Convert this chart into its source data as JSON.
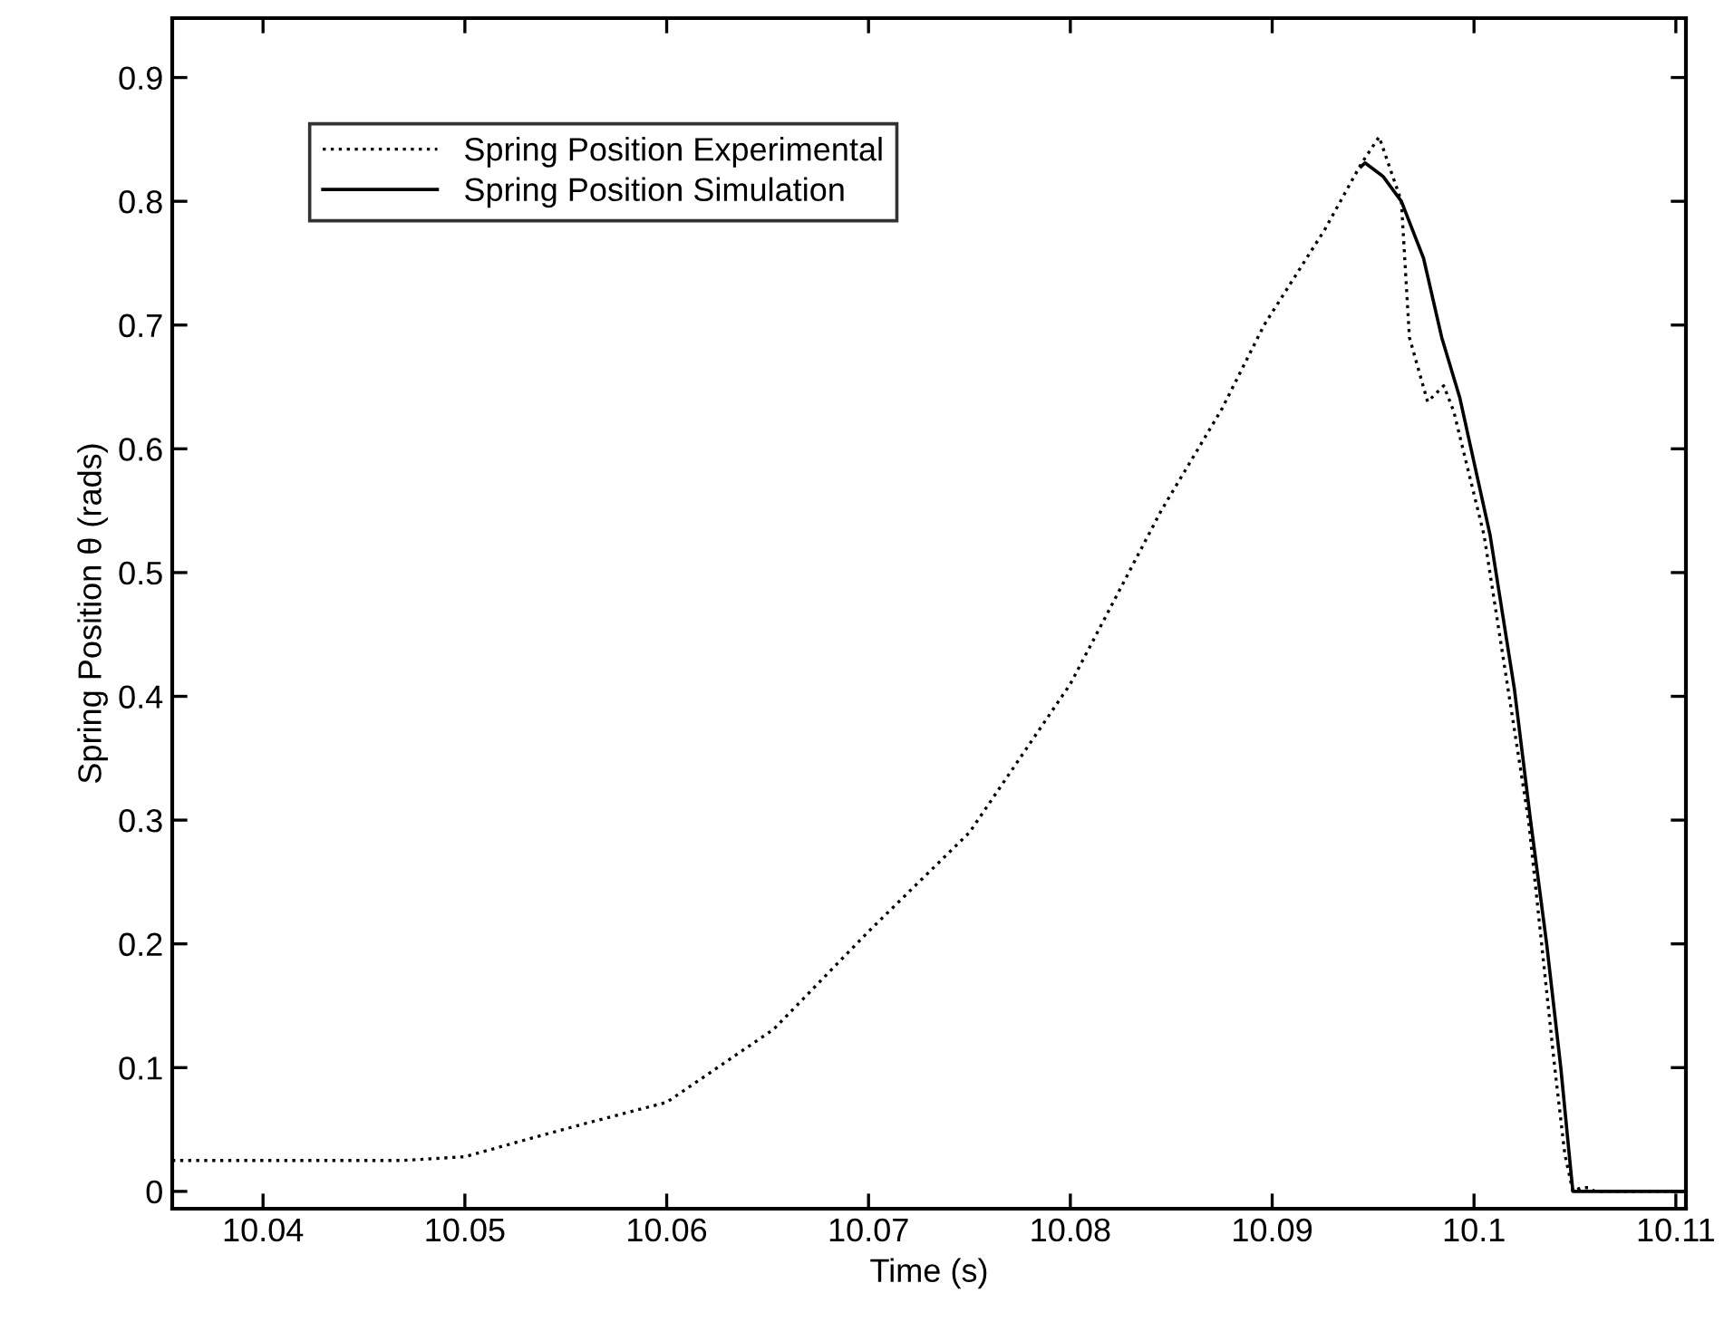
{
  "chart_data": {
    "type": "line",
    "xlabel": "Time (s)",
    "ylabel": "Spring Position θ (rads)",
    "xlim": [
      10.0355,
      10.1105
    ],
    "ylim": [
      -0.014,
      0.948
    ],
    "xticks": [
      10.04,
      10.05,
      10.06,
      10.07,
      10.08,
      10.09,
      10.1,
      10.11
    ],
    "yticks": [
      0,
      0.1,
      0.2,
      0.3,
      0.4,
      0.5,
      0.6,
      0.7,
      0.8,
      0.9
    ],
    "grid": false,
    "legend": "top left",
    "marker": "none",
    "series": [
      {
        "name": "Spring Position Experimental",
        "color": "#000000",
        "line_style": "dotted",
        "x": [
          10.0355,
          10.0469,
          10.05,
          10.0533,
          10.056,
          10.06,
          10.0653,
          10.07,
          10.075,
          10.08,
          10.0845,
          10.0875,
          10.0896,
          10.0926,
          10.0944,
          10.0953,
          10.0964,
          10.0968,
          10.0977,
          10.0985,
          10.099,
          10.1005,
          10.1027,
          10.104,
          10.1045,
          10.1049,
          10.1053,
          10.1057,
          10.106,
          10.1105
        ],
        "values": [
          0.025,
          0.025,
          0.028,
          0.043,
          0.055,
          0.072,
          0.131,
          0.21,
          0.29,
          0.41,
          0.55,
          0.632,
          0.7,
          0.777,
          0.83,
          0.852,
          0.8,
          0.69,
          0.638,
          0.651,
          0.63,
          0.53,
          0.3,
          0.1,
          0.03,
          0,
          0.003,
          0.003,
          0,
          0
        ]
      },
      {
        "name": "Spring Position Simulation",
        "color": "#000000",
        "line_style": "solid",
        "x": [
          10.0944,
          10.0946,
          10.0955,
          10.0964,
          10.0975,
          10.0984,
          10.0993,
          10.1008,
          10.102,
          10.1028,
          10.1036,
          10.1043,
          10.1048,
          10.1049,
          10.1105
        ],
        "values": [
          0.828,
          0.831,
          0.82,
          0.8,
          0.754,
          0.69,
          0.641,
          0.53,
          0.406,
          0.3,
          0.2,
          0.1,
          0.016,
          0,
          0
        ]
      }
    ]
  }
}
